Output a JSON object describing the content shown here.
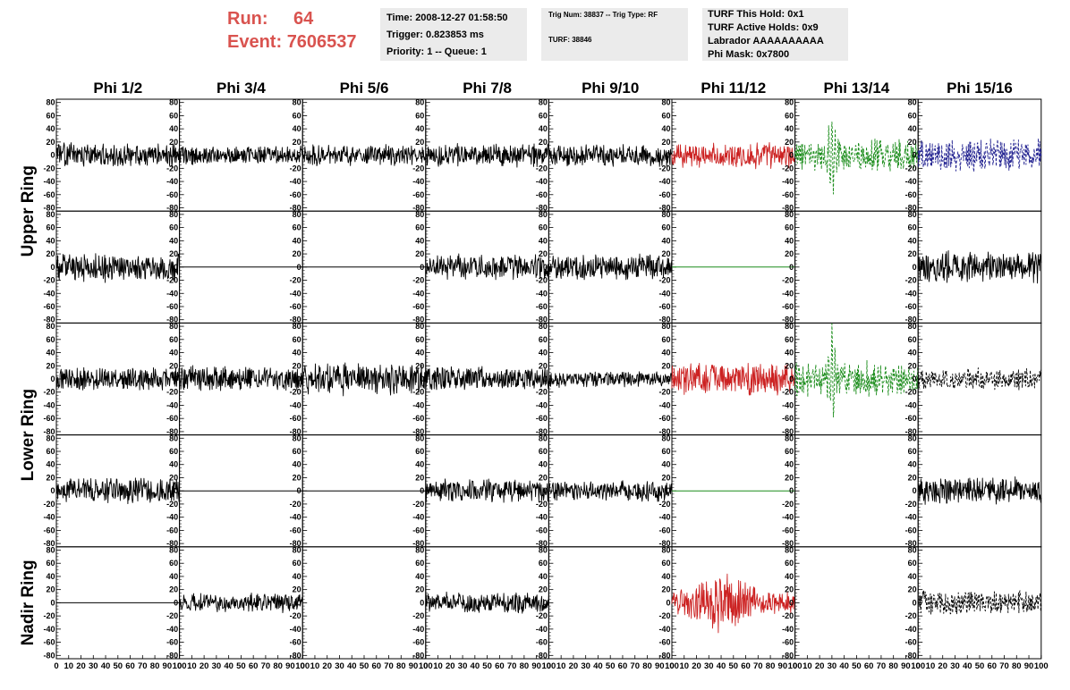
{
  "header": {
    "run_label": "Run:",
    "run_value": "64",
    "event_label": "Event:",
    "event_value": "7606537",
    "time_box": [
      "Time: 2008-12-27 01:58:50",
      "Trigger: 0.823853 ms",
      "Priority: 1 -- Queue: 1"
    ],
    "trig_box": [
      "Trig Num: 38837 -- Trig Type: RF",
      "TURF: 38846"
    ],
    "turf_box": [
      "TURF This Hold: 0x1",
      "TURF Active Holds: 0x9",
      "Labrador AAAAAAAAAA",
      "Phi Mask: 0x7800"
    ]
  },
  "colors": {
    "accent_red": "#d9534f",
    "trace_black": "#000000",
    "trace_red": "#cc2222",
    "trace_green": "#1a8c1a",
    "trace_blue": "#1f1f8f",
    "box_bg": "#ebebeb"
  },
  "chart_data": {
    "type": "line",
    "column_headers": [
      "Phi 1/2",
      "Phi 3/4",
      "Phi 5/6",
      "Phi 7/8",
      "Phi 9/10",
      "Phi 11/12",
      "Phi 13/14",
      "Phi 15/16"
    ],
    "ring_labels": [
      {
        "label": "Upper Ring",
        "rows": [
          0,
          1
        ]
      },
      {
        "label": "Lower Ring",
        "rows": [
          2,
          3
        ]
      },
      {
        "label": "Nadir Ring",
        "rows": [
          4
        ]
      }
    ],
    "ylim": [
      -85,
      85
    ],
    "xlim": [
      0,
      100
    ],
    "y_ticks": [
      80,
      60,
      40,
      20,
      0,
      -20,
      -40,
      -60,
      -80
    ],
    "x_ticks": [
      0,
      10,
      20,
      30,
      40,
      50,
      60,
      70,
      80,
      90,
      100
    ],
    "panels": [
      [
        {
          "color": "black",
          "style": "solid",
          "amp": 18,
          "seed": 11
        },
        {
          "color": "black",
          "style": "solid",
          "amp": 14,
          "seed": 12
        },
        {
          "color": "black",
          "style": "solid",
          "amp": 16,
          "seed": 13
        },
        {
          "color": "black",
          "style": "solid",
          "amp": 17,
          "seed": 14
        },
        {
          "color": "black",
          "style": "solid",
          "amp": 17,
          "seed": 15
        },
        {
          "color": "red",
          "style": "solid",
          "amp": 19,
          "seed": 16
        },
        {
          "color": "green",
          "style": "dashed",
          "amp": 24,
          "seed": 17,
          "pulse_at": 30,
          "pulse_amp": 70
        },
        {
          "color": "blue",
          "style": "dashed",
          "amp": 24,
          "seed": 18
        }
      ],
      [
        {
          "color": "black",
          "style": "solid",
          "amp": 22,
          "seed": 21
        },
        {
          "color": "black",
          "style": "flat"
        },
        {
          "color": "black",
          "style": "flat"
        },
        {
          "color": "black",
          "style": "solid",
          "amp": 19,
          "seed": 24
        },
        {
          "color": "black",
          "style": "solid",
          "amp": 20,
          "seed": 25
        },
        {
          "color": "green",
          "style": "flat"
        },
        {
          "color": null,
          "style": "empty"
        },
        {
          "color": "black",
          "style": "solid",
          "amp": 24,
          "seed": 28
        }
      ],
      [
        {
          "color": "black",
          "style": "solid",
          "amp": 17,
          "seed": 31
        },
        {
          "color": "black",
          "style": "solid",
          "amp": 19,
          "seed": 32
        },
        {
          "color": "black",
          "style": "solid",
          "amp": 24,
          "seed": 33
        },
        {
          "color": "black",
          "style": "solid",
          "amp": 18,
          "seed": 34
        },
        {
          "color": "black",
          "style": "solid",
          "amp": 12,
          "seed": 35
        },
        {
          "color": "red",
          "style": "solid",
          "amp": 24,
          "seed": 36
        },
        {
          "color": "green",
          "style": "dashed",
          "amp": 26,
          "seed": 37,
          "pulse_at": 30,
          "pulse_amp": 75
        },
        {
          "color": "black",
          "style": "dashed",
          "amp": 16,
          "seed": 38
        }
      ],
      [
        {
          "color": "black",
          "style": "solid",
          "amp": 19,
          "seed": 41
        },
        {
          "color": "black",
          "style": "flat"
        },
        {
          "color": "black",
          "style": "flat"
        },
        {
          "color": "black",
          "style": "solid",
          "amp": 17,
          "seed": 44
        },
        {
          "color": "black",
          "style": "solid",
          "amp": 15,
          "seed": 45
        },
        {
          "color": "green",
          "style": "flat"
        },
        {
          "color": null,
          "style": "empty"
        },
        {
          "color": "black",
          "style": "solid",
          "amp": 20,
          "seed": 48
        }
      ],
      [
        {
          "color": "black",
          "style": "flat"
        },
        {
          "color": "black",
          "style": "solid",
          "amp": 14,
          "seed": 52
        },
        {
          "color": null,
          "style": "empty"
        },
        {
          "color": "black",
          "style": "solid",
          "amp": 16,
          "seed": 54
        },
        {
          "color": null,
          "style": "empty"
        },
        {
          "color": "red",
          "style": "solid",
          "amp": 38,
          "seed": 56,
          "envelope": true
        },
        {
          "color": null,
          "style": "empty"
        },
        {
          "color": "black",
          "style": "dashed",
          "amp": 18,
          "seed": 58
        }
      ]
    ]
  }
}
